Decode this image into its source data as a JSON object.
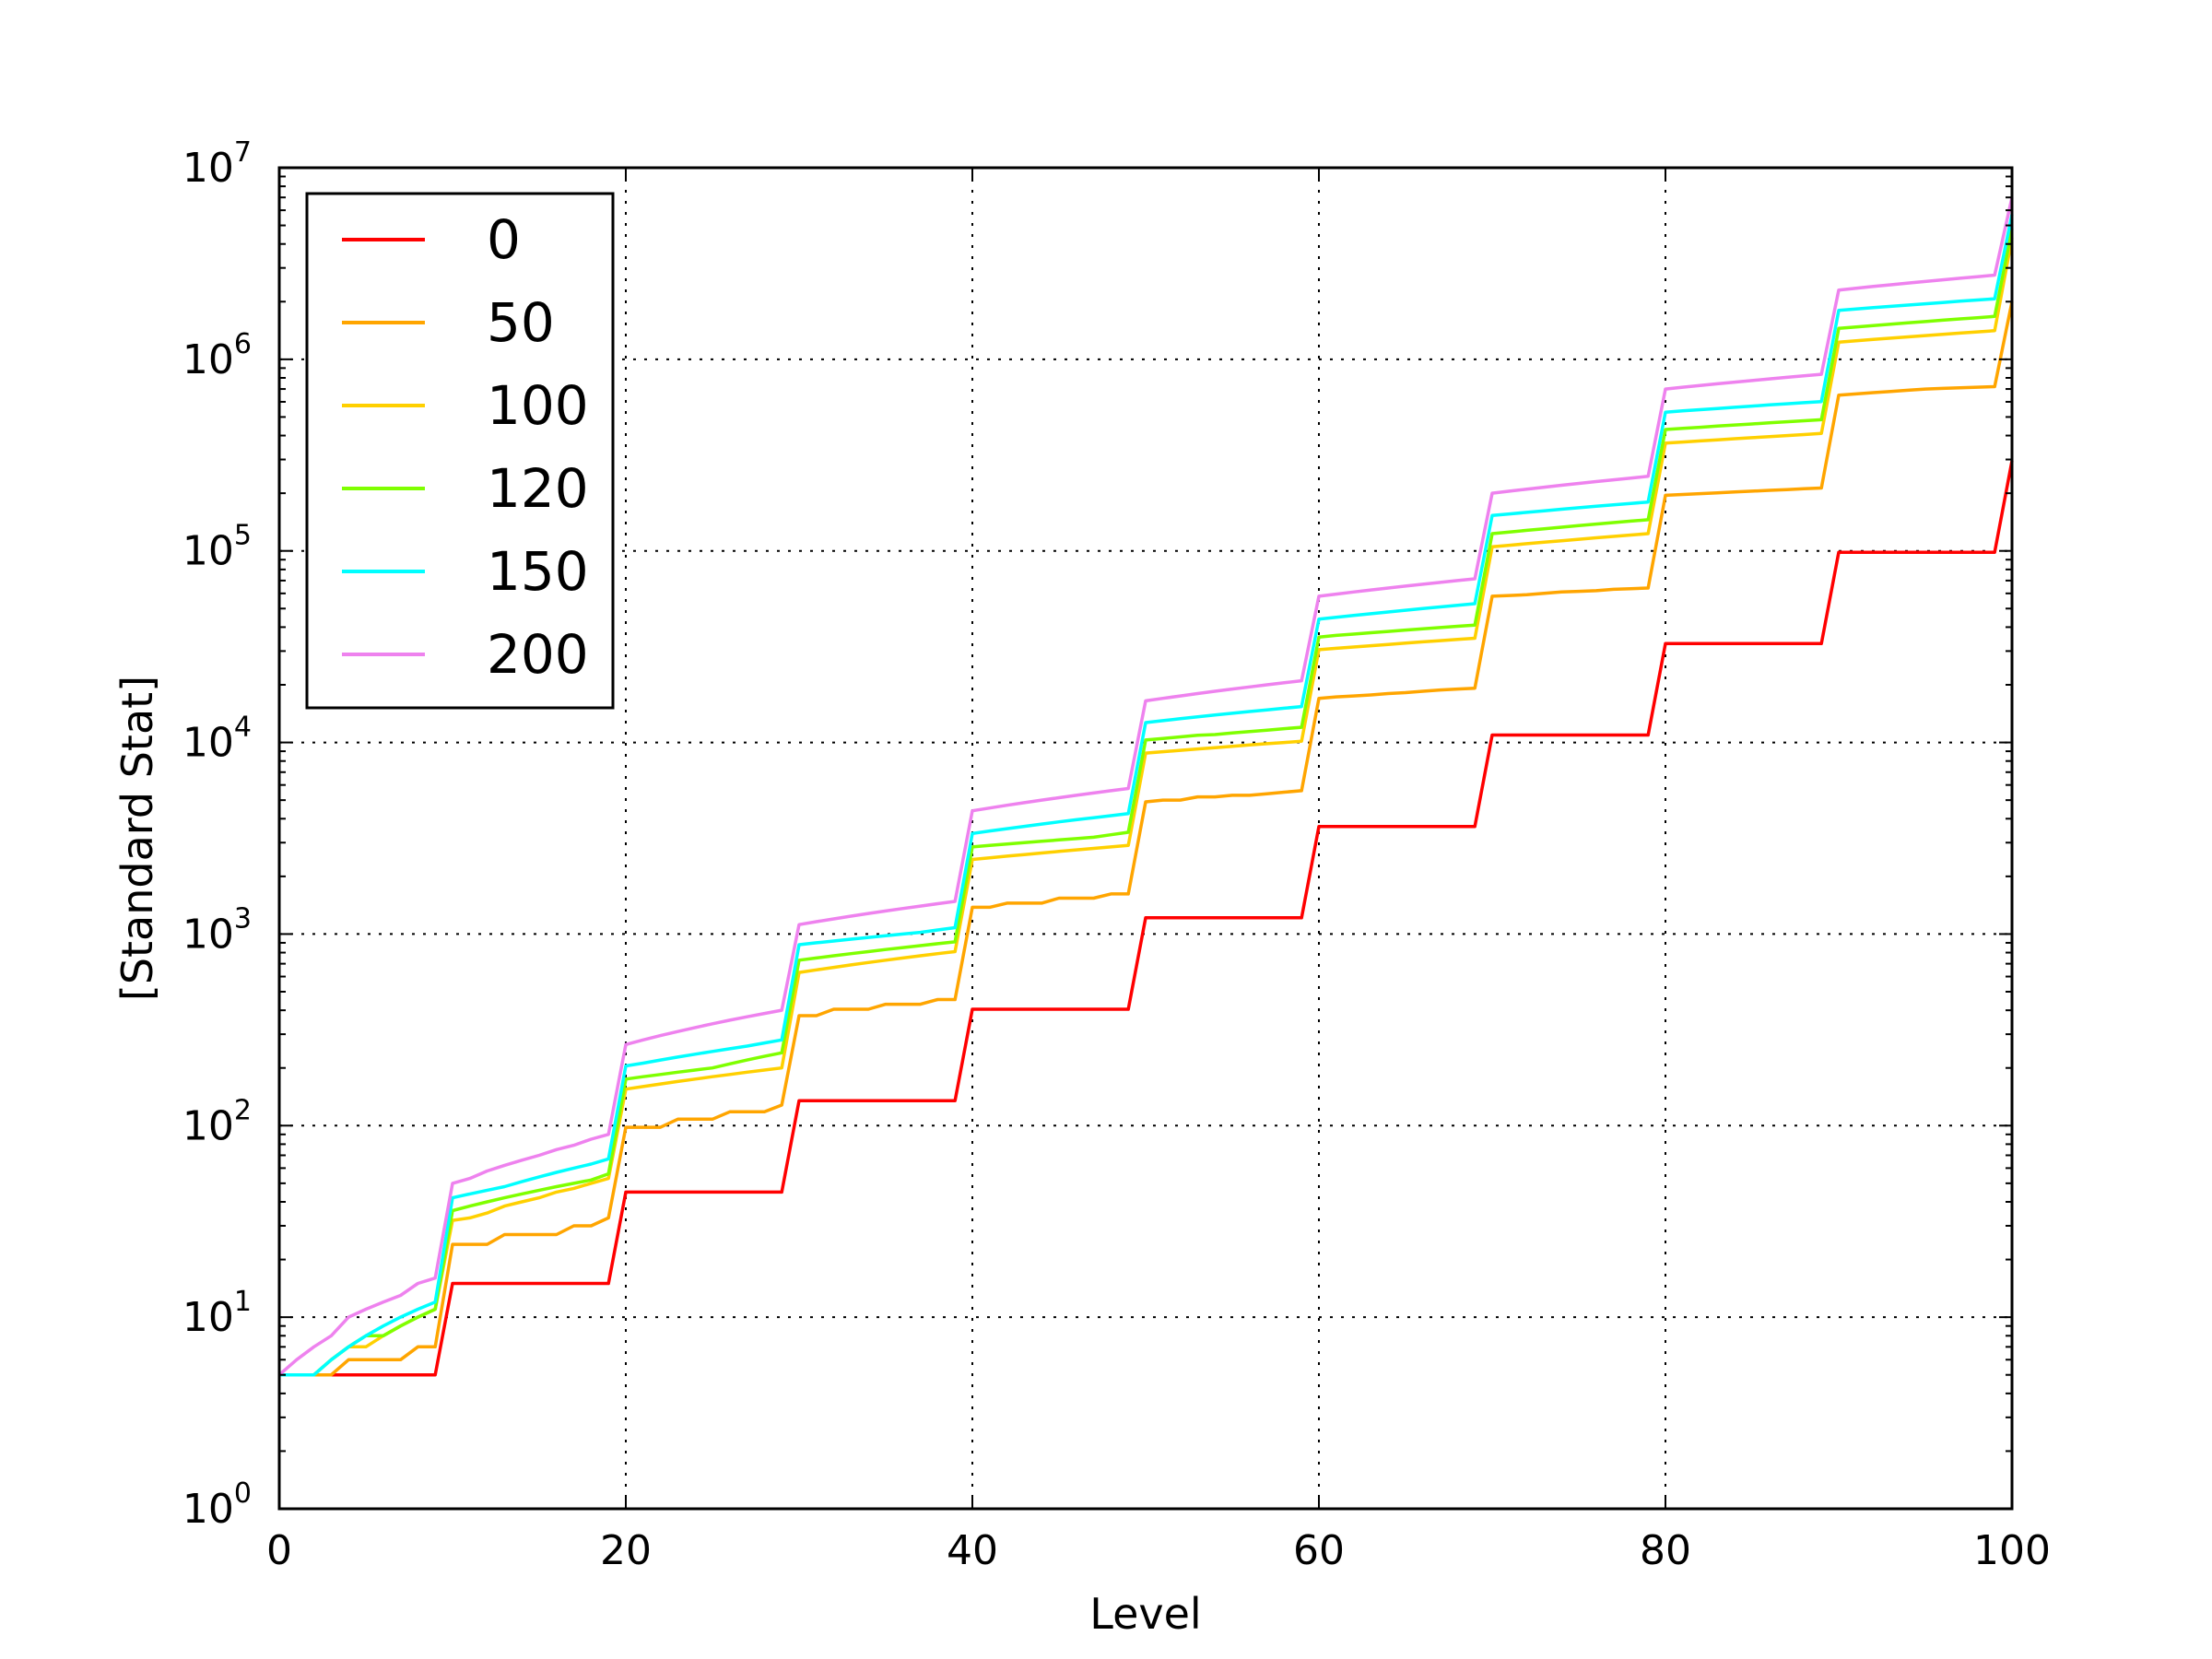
{
  "chart_data": {
    "type": "line",
    "title": "",
    "xlabel": "Level",
    "ylabel": "[Standard Stat]",
    "xlim": [
      0,
      100
    ],
    "ylim": [
      1,
      10000000
    ],
    "yscale": "log",
    "grid": true,
    "legend_position": "top-left",
    "x_ticks": [
      "0",
      "20",
      "40",
      "60",
      "80",
      "100"
    ],
    "y_ticks": [
      {
        "base": "10",
        "exp": "0"
      },
      {
        "base": "10",
        "exp": "1"
      },
      {
        "base": "10",
        "exp": "2"
      },
      {
        "base": "10",
        "exp": "3"
      },
      {
        "base": "10",
        "exp": "4"
      },
      {
        "base": "10",
        "exp": "5"
      },
      {
        "base": "10",
        "exp": "6"
      },
      {
        "base": "10",
        "exp": "7"
      }
    ],
    "series": [
      {
        "name": "0",
        "color": "#ff0000",
        "values": [
          5,
          5,
          5,
          5,
          5,
          5,
          5,
          5,
          5,
          5,
          15,
          15,
          15,
          15,
          15,
          15,
          15,
          15,
          15,
          15,
          45,
          45,
          45,
          45,
          45,
          45,
          45,
          45,
          45,
          45,
          135,
          135,
          135,
          135,
          135,
          135,
          135,
          135,
          135,
          135,
          405,
          405,
          405,
          405,
          405,
          405,
          405,
          405,
          405,
          405,
          1215,
          1215,
          1215,
          1215,
          1215,
          1215,
          1215,
          1215,
          1215,
          1215,
          3645,
          3645,
          3645,
          3645,
          3645,
          3645,
          3645,
          3645,
          3645,
          3645,
          10935,
          10935,
          10935,
          10935,
          10935,
          10935,
          10935,
          10935,
          10935,
          10935,
          32805,
          32805,
          32805,
          32805,
          32805,
          32805,
          32805,
          32805,
          32805,
          32805,
          98415,
          98415,
          98415,
          98415,
          98415,
          98415,
          98415,
          98415,
          98415,
          98415,
          295245
        ]
      },
      {
        "name": "50",
        "color": "#ffa500",
        "values": [
          5,
          5,
          5,
          5,
          6,
          6,
          6,
          6,
          7,
          7,
          24,
          24,
          24,
          27,
          27,
          27,
          27,
          30,
          30,
          33,
          98,
          98,
          98,
          108,
          108,
          108,
          118,
          118,
          118,
          128,
          375,
          375,
          405,
          405,
          405,
          430,
          430,
          430,
          455,
          455,
          1380,
          1380,
          1450,
          1450,
          1450,
          1540,
          1540,
          1540,
          1620,
          1620,
          4900,
          5000,
          5000,
          5200,
          5200,
          5300,
          5300,
          5400,
          5500,
          5600,
          17000,
          17300,
          17500,
          17700,
          18000,
          18200,
          18500,
          18800,
          19000,
          19200,
          58000,
          58500,
          59000,
          60000,
          61000,
          61500,
          62000,
          63000,
          63500,
          64000,
          195000,
          197000,
          199000,
          201000,
          203000,
          205000,
          207000,
          209000,
          211000,
          213000,
          650000,
          660000,
          670000,
          680000,
          690000,
          700000,
          705000,
          710000,
          715000,
          720000,
          2000000
        ]
      },
      {
        "name": "100",
        "color": "#ffd000",
        "values": [
          5,
          5,
          5,
          6,
          7,
          7,
          8,
          9,
          10,
          11,
          32,
          33,
          35,
          38,
          40,
          42,
          45,
          47,
          50,
          53,
          155,
          160,
          165,
          170,
          175,
          180,
          185,
          190,
          195,
          200,
          630,
          650,
          670,
          690,
          710,
          730,
          750,
          770,
          790,
          810,
          2450,
          2500,
          2550,
          2600,
          2650,
          2700,
          2750,
          2800,
          2850,
          2900,
          8800,
          8950,
          9100,
          9250,
          9400,
          9550,
          9700,
          9850,
          10000,
          10150,
          30500,
          31000,
          31500,
          32000,
          32500,
          33000,
          33500,
          34000,
          34500,
          35000,
          105000,
          107000,
          109000,
          111000,
          113000,
          115000,
          117000,
          119000,
          121000,
          123000,
          365000,
          370000,
          375000,
          380000,
          385000,
          390000,
          395000,
          400000,
          405000,
          410000,
          1230000,
          1250000,
          1270000,
          1290000,
          1310000,
          1330000,
          1350000,
          1370000,
          1390000,
          1410000,
          4300000
        ]
      },
      {
        "name": "120",
        "color": "#7fff00",
        "values": [
          5,
          5,
          5,
          6,
          7,
          8,
          8,
          9,
          10,
          11,
          36,
          38,
          40,
          42,
          44,
          46,
          48,
          50,
          52,
          56,
          175,
          180,
          185,
          190,
          195,
          200,
          210,
          220,
          230,
          240,
          730,
          750,
          770,
          790,
          810,
          830,
          850,
          870,
          890,
          910,
          2850,
          2900,
          2950,
          3000,
          3050,
          3100,
          3150,
          3200,
          3300,
          3400,
          10300,
          10500,
          10700,
          10900,
          11000,
          11200,
          11400,
          11600,
          11800,
          12000,
          35500,
          36200,
          36800,
          37400,
          38000,
          38600,
          39200,
          39800,
          40400,
          41000,
          123000,
          125500,
          128000,
          130500,
          133000,
          135500,
          138000,
          140500,
          143000,
          145500,
          430000,
          436000,
          442000,
          448000,
          454000,
          460000,
          466000,
          472000,
          478000,
          484000,
          1450000,
          1475000,
          1500000,
          1525000,
          1550000,
          1575000,
          1600000,
          1625000,
          1650000,
          1675000,
          4800000
        ]
      },
      {
        "name": "150",
        "color": "#00ffff",
        "values": [
          5,
          5,
          5,
          6,
          7,
          8,
          9,
          10,
          11,
          12,
          42,
          44,
          46,
          48,
          51,
          54,
          57,
          60,
          63,
          67,
          205,
          212,
          220,
          228,
          236,
          244,
          252,
          260,
          270,
          280,
          880,
          900,
          920,
          940,
          960,
          980,
          1000,
          1020,
          1050,
          1080,
          3350,
          3450,
          3550,
          3650,
          3750,
          3850,
          3950,
          4050,
          4150,
          4250,
          12700,
          13000,
          13300,
          13600,
          13900,
          14200,
          14500,
          14800,
          15100,
          15400,
          44000,
          45000,
          46000,
          47000,
          48000,
          49000,
          50000,
          51000,
          52000,
          53000,
          153000,
          156000,
          159000,
          162000,
          165000,
          168000,
          171000,
          174000,
          177000,
          180000,
          530000,
          538000,
          546000,
          554000,
          562000,
          570000,
          578000,
          586000,
          594000,
          602000,
          1800000,
          1830000,
          1860000,
          1890000,
          1920000,
          1950000,
          1980000,
          2010000,
          2040000,
          2070000,
          5700000
        ]
      },
      {
        "name": "200",
        "color": "#ee82ee",
        "values": [
          5,
          6,
          7,
          8,
          10,
          11,
          12,
          13,
          15,
          16,
          50,
          53,
          58,
          62,
          66,
          70,
          75,
          79,
          85,
          90,
          265,
          280,
          295,
          310,
          325,
          340,
          355,
          370,
          385,
          400,
          1120,
          1160,
          1200,
          1240,
          1280,
          1320,
          1360,
          1400,
          1440,
          1480,
          4400,
          4550,
          4700,
          4850,
          5000,
          5150,
          5300,
          5450,
          5600,
          5750,
          16500,
          17000,
          17500,
          18000,
          18500,
          19000,
          19500,
          20000,
          20500,
          21000,
          58000,
          59500,
          61000,
          62500,
          64000,
          65500,
          67000,
          68500,
          70000,
          71500,
          200000,
          205000,
          210000,
          215000,
          220000,
          225000,
          230000,
          235000,
          240000,
          245000,
          700000,
          715000,
          730000,
          745000,
          760000,
          775000,
          790000,
          805000,
          820000,
          835000,
          2300000,
          2350000,
          2400000,
          2450000,
          2500000,
          2550000,
          2600000,
          2650000,
          2700000,
          2750000,
          7000000
        ]
      }
    ]
  }
}
